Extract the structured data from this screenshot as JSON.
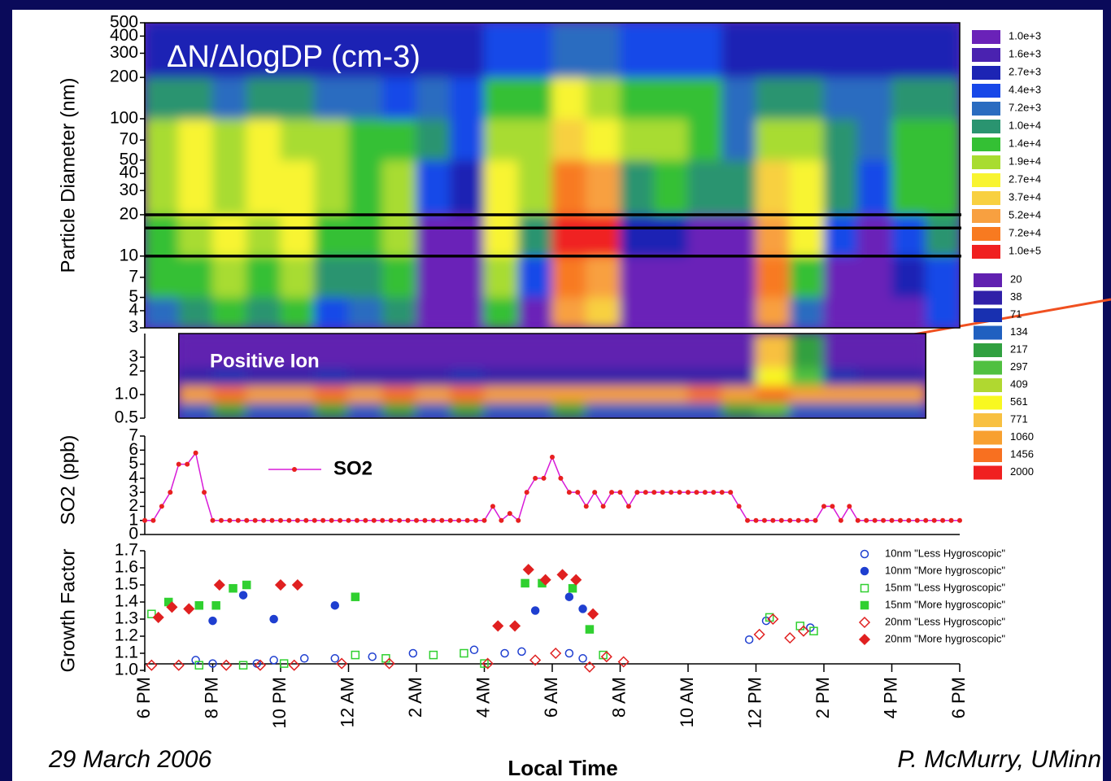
{
  "chart_data": [
    {
      "type": "heatmap",
      "title": "ΔN/ΔlogDP (cm-3)",
      "y_label": "Particle Diameter (nm)",
      "xlim": [
        0,
        24
      ],
      "ylim": [
        3,
        500
      ],
      "log_y": true,
      "yticks": [
        3,
        4,
        5,
        7,
        10,
        20,
        30,
        40,
        50,
        70,
        100,
        200,
        300,
        400,
        500
      ],
      "hlines": [
        10,
        16,
        20
      ],
      "x_edges": [
        0,
        1,
        2,
        3,
        4,
        5,
        6,
        7,
        8,
        9,
        10,
        11,
        12,
        13,
        14,
        15,
        16,
        17,
        18,
        19,
        20,
        21,
        22,
        23,
        24
      ],
      "y_edges": [
        3,
        5,
        10,
        20,
        50,
        100,
        200,
        500
      ],
      "z": [
        [
          7200,
          10000,
          14000,
          10000,
          14000,
          4400,
          7200,
          10000,
          1000,
          1000,
          14000,
          1000,
          52000,
          37000,
          1000,
          1000,
          1000,
          1000,
          52000,
          7200,
          1000,
          1000,
          1000,
          4400
        ],
        [
          14000,
          14000,
          19000,
          14000,
          19000,
          10000,
          10000,
          14000,
          1000,
          1000,
          19000,
          4400,
          72000,
          52000,
          1000,
          1000,
          1000,
          1000,
          72000,
          14000,
          1000,
          1000,
          2700,
          4400
        ],
        [
          14000,
          19000,
          27000,
          19000,
          27000,
          14000,
          14000,
          19000,
          1000,
          1000,
          27000,
          10000,
          100000,
          100000,
          2700,
          2700,
          1000,
          1000,
          52000,
          27000,
          4400,
          1000,
          4400,
          10000
        ],
        [
          19000,
          27000,
          19000,
          27000,
          27000,
          19000,
          14000,
          19000,
          4400,
          2700,
          27000,
          19000,
          72000,
          52000,
          10000,
          14000,
          10000,
          10000,
          37000,
          27000,
          10000,
          4400,
          14000,
          14000
        ],
        [
          19000,
          27000,
          19000,
          27000,
          19000,
          19000,
          14000,
          14000,
          10000,
          4400,
          19000,
          19000,
          37000,
          27000,
          19000,
          19000,
          14000,
          7200,
          19000,
          19000,
          10000,
          7200,
          14000,
          14000
        ],
        [
          10000,
          10000,
          7200,
          10000,
          10000,
          7200,
          7200,
          4400,
          7200,
          4400,
          14000,
          14000,
          27000,
          19000,
          14000,
          14000,
          14000,
          7200,
          10000,
          10000,
          7200,
          7200,
          10000,
          10000
        ],
        [
          2700,
          2700,
          2700,
          2700,
          2700,
          2700,
          2700,
          2700,
          2700,
          2700,
          4400,
          4400,
          7200,
          7200,
          4400,
          4400,
          4400,
          2700,
          2700,
          2700,
          2700,
          2700,
          2700,
          2700
        ]
      ],
      "colorbar": {
        "levels": [
          {
            "value": 1000,
            "label": "1.0e+3"
          },
          {
            "value": 1600,
            "label": "1.6e+3"
          },
          {
            "value": 2700,
            "label": "2.7e+3"
          },
          {
            "value": 4400,
            "label": "4.4e+3"
          },
          {
            "value": 7200,
            "label": "7.2e+3"
          },
          {
            "value": 10000,
            "label": "1.0e+4"
          },
          {
            "value": 14000,
            "label": "1.4e+4"
          },
          {
            "value": 19000,
            "label": "1.9e+4"
          },
          {
            "value": 27000,
            "label": "2.7e+4"
          },
          {
            "value": 37000,
            "label": "3.7e+4"
          },
          {
            "value": 52000,
            "label": "5.2e+4"
          },
          {
            "value": 72000,
            "label": "7.2e+4"
          },
          {
            "value": 100000,
            "label": "1.0e+5"
          }
        ],
        "colors": [
          "#6a22b8",
          "#4a22b0",
          "#1c24b4",
          "#1848e8",
          "#2a6cc0",
          "#2a9470",
          "#34c034",
          "#a8dc30",
          "#f8f430",
          "#f8d040",
          "#f8a040",
          "#f87a20",
          "#f02020"
        ]
      }
    },
    {
      "type": "heatmap",
      "annotation": "Positive Ion",
      "xlim": [
        0,
        24
      ],
      "ylim": [
        0.5,
        6
      ],
      "log_y": true,
      "yticks": [
        0.5,
        {
          "value": 1,
          "label": "1.0"
        },
        2,
        3
      ],
      "x_edges": [
        1,
        2,
        3,
        4,
        5,
        6,
        7,
        8,
        9,
        10,
        11,
        12,
        13,
        14,
        15,
        16,
        17,
        18,
        19,
        20,
        21,
        22,
        23
      ],
      "y_edges": [
        0.5,
        0.8,
        1.3,
        2.2,
        6
      ],
      "z": [
        [
          134,
          217,
          134,
          134,
          217,
          134,
          217,
          134,
          217,
          134,
          134,
          217,
          134,
          134,
          134,
          134,
          217,
          297,
          134,
          134,
          134,
          134
        ],
        [
          1060,
          1456,
          1060,
          1060,
          1456,
          1060,
          1456,
          1060,
          1456,
          1060,
          1060,
          1060,
          1060,
          1060,
          1060,
          1456,
          1060,
          1456,
          1060,
          1060,
          1060,
          1060
        ],
        [
          38,
          71,
          38,
          38,
          71,
          38,
          38,
          38,
          71,
          38,
          38,
          38,
          38,
          38,
          38,
          38,
          38,
          561,
          297,
          71,
          38,
          38
        ],
        [
          20,
          20,
          20,
          20,
          20,
          20,
          20,
          20,
          20,
          20,
          20,
          20,
          20,
          20,
          20,
          20,
          20,
          771,
          217,
          20,
          20,
          20
        ]
      ],
      "colorbar": {
        "levels": [
          20,
          38,
          71,
          134,
          217,
          297,
          409,
          561,
          771,
          1060,
          1456,
          2000
        ],
        "colors": [
          "#6020b0",
          "#3020a8",
          "#1830b0",
          "#2060c0",
          "#30a040",
          "#50c040",
          "#b0d830",
          "#f8f820",
          "#f8c040",
          "#f8a030",
          "#f87020",
          "#f02020"
        ]
      }
    },
    {
      "type": "line",
      "y_label": "SO2 (ppb)",
      "xlim": [
        0,
        24
      ],
      "ylim": [
        0,
        7
      ],
      "yticks": [
        0,
        1,
        2,
        3,
        4,
        5,
        6,
        7
      ],
      "x": [
        0,
        0.25,
        0.5,
        0.75,
        1,
        1.25,
        1.5,
        1.75,
        2,
        2.25,
        2.5,
        2.75,
        3,
        3.25,
        3.5,
        3.75,
        4,
        4.25,
        4.5,
        4.75,
        5,
        5.25,
        5.5,
        5.75,
        6,
        6.25,
        6.5,
        6.75,
        7,
        7.25,
        7.5,
        7.75,
        8,
        8.25,
        8.5,
        8.75,
        9,
        9.25,
        9.5,
        9.75,
        10,
        10.25,
        10.5,
        10.75,
        11,
        11.25,
        11.5,
        11.75,
        12,
        12.25,
        12.5,
        12.75,
        13,
        13.25,
        13.5,
        13.75,
        14,
        14.25,
        14.5,
        14.75,
        15,
        15.25,
        15.5,
        15.75,
        16,
        16.25,
        16.5,
        16.75,
        17,
        17.25,
        17.5,
        17.75,
        18,
        18.25,
        18.5,
        18.75,
        19,
        19.25,
        19.5,
        19.75,
        20,
        20.25,
        20.5,
        20.75,
        21,
        21.25,
        21.5,
        21.75,
        22,
        22.25,
        22.5,
        22.75,
        23,
        23.25,
        23.5,
        23.75,
        24
      ],
      "series": [
        {
          "name": "SO2",
          "color": "#d81bd8",
          "marker_color": "#e82020",
          "values": [
            1,
            1,
            2,
            3,
            5,
            5,
            5.8,
            3,
            1,
            1,
            1,
            1,
            1,
            1,
            1,
            1,
            1,
            1,
            1,
            1,
            1,
            1,
            1,
            1,
            1,
            1,
            1,
            1,
            1,
            1,
            1,
            1,
            1,
            1,
            1,
            1,
            1,
            1,
            1,
            1,
            1,
            2,
            1,
            1.5,
            1,
            3,
            4,
            4,
            5.5,
            4,
            3,
            3,
            2,
            3,
            2,
            3,
            3,
            2,
            3,
            3,
            3,
            3,
            3,
            3,
            3,
            3,
            3,
            3,
            3,
            3,
            2,
            1,
            1,
            1,
            1,
            1,
            1,
            1,
            1,
            1,
            2,
            2,
            1,
            2,
            1,
            1,
            1,
            1,
            1,
            1,
            1,
            1,
            1,
            1,
            1,
            1,
            1
          ]
        }
      ]
    },
    {
      "type": "scatter",
      "y_label": "Growth Factor",
      "x_label": "Local Time",
      "legend": "upper right",
      "xlim": [
        0,
        24
      ],
      "ylim": [
        1,
        1.7
      ],
      "xticks": [
        {
          "value": 0,
          "label": "6 PM"
        },
        {
          "value": 2,
          "label": "8 PM"
        },
        {
          "value": 4,
          "label": "10 PM"
        },
        {
          "value": 6,
          "label": "12 AM"
        },
        {
          "value": 8,
          "label": "2 AM"
        },
        {
          "value": 10,
          "label": "4 AM"
        },
        {
          "value": 12,
          "label": "6 AM"
        },
        {
          "value": 14,
          "label": "8 AM"
        },
        {
          "value": 16,
          "label": "10 AM"
        },
        {
          "value": 18,
          "label": "12 PM"
        },
        {
          "value": 20,
          "label": "2 PM"
        },
        {
          "value": 22,
          "label": "4 PM"
        },
        {
          "value": 24,
          "label": "6 PM"
        }
      ],
      "yticks": [
        {
          "value": 1,
          "label": "1.0"
        },
        1.1,
        1.2,
        1.3,
        1.4,
        1.5,
        1.6,
        1.7
      ],
      "series": [
        {
          "name": "10nm \"Less Hygroscopic\"",
          "color": "#1f3fd0",
          "marker": "circle",
          "filled": false,
          "x": [
            1.5,
            2.0,
            3.3,
            3.8,
            4.7,
            5.6,
            6.7,
            7.9,
            9.7,
            10.6,
            11.1,
            12.5,
            12.9,
            17.8,
            18.3,
            19.6
          ],
          "values": [
            1.06,
            1.04,
            1.04,
            1.06,
            1.07,
            1.07,
            1.08,
            1.1,
            1.12,
            1.1,
            1.11,
            1.1,
            1.07,
            1.18,
            1.29,
            1.25
          ]
        },
        {
          "name": "10nm \"More hygroscopic\"",
          "color": "#1f3fd0",
          "marker": "circle",
          "filled": true,
          "x": [
            2.0,
            2.9,
            3.8,
            5.6,
            11.5,
            12.5,
            12.9
          ],
          "values": [
            1.29,
            1.44,
            1.3,
            1.38,
            1.35,
            1.43,
            1.36
          ]
        },
        {
          "name": "15nm \"Less Hygroscopic\"",
          "color": "#30d030",
          "marker": "square",
          "filled": false,
          "x": [
            0.2,
            1.6,
            2.9,
            4.1,
            6.2,
            7.1,
            8.5,
            9.4,
            10.0,
            13.5,
            18.4,
            19.3,
            19.7
          ],
          "values": [
            1.33,
            1.03,
            1.03,
            1.04,
            1.09,
            1.07,
            1.09,
            1.1,
            1.04,
            1.09,
            1.31,
            1.26,
            1.23
          ]
        },
        {
          "name": "15nm \"More hygroscopic\"",
          "color": "#30d030",
          "marker": "square",
          "filled": true,
          "x": [
            0.7,
            1.6,
            2.1,
            2.6,
            3.0,
            6.2,
            11.2,
            11.7,
            12.6,
            13.1
          ],
          "values": [
            1.4,
            1.38,
            1.38,
            1.48,
            1.5,
            1.43,
            1.51,
            1.51,
            1.48,
            1.24
          ]
        },
        {
          "name": "20nm \"Less Hygroscopic\"",
          "color": "#e02020",
          "marker": "diamond",
          "filled": false,
          "x": [
            0.2,
            1.0,
            2.4,
            3.4,
            4.4,
            5.8,
            7.2,
            10.1,
            11.5,
            12.1,
            13.1,
            13.6,
            14.1,
            18.1,
            18.5,
            19.0,
            19.4
          ],
          "values": [
            1.03,
            1.03,
            1.03,
            1.03,
            1.03,
            1.04,
            1.04,
            1.04,
            1.06,
            1.1,
            1.02,
            1.08,
            1.05,
            1.21,
            1.3,
            1.19,
            1.23
          ]
        },
        {
          "name": "20nm \"More hygroscopic\"",
          "color": "#e02020",
          "marker": "diamond",
          "filled": true,
          "x": [
            0.4,
            0.8,
            1.3,
            2.2,
            4.0,
            4.5,
            10.4,
            10.9,
            11.3,
            11.8,
            12.3,
            12.7,
            13.2
          ],
          "values": [
            1.31,
            1.37,
            1.36,
            1.5,
            1.5,
            1.5,
            1.26,
            1.26,
            1.59,
            1.53,
            1.56,
            1.53,
            1.33
          ]
        }
      ]
    }
  ],
  "footer": {
    "date": "29 March 2006",
    "author": "P. McMurry, UMinn"
  }
}
